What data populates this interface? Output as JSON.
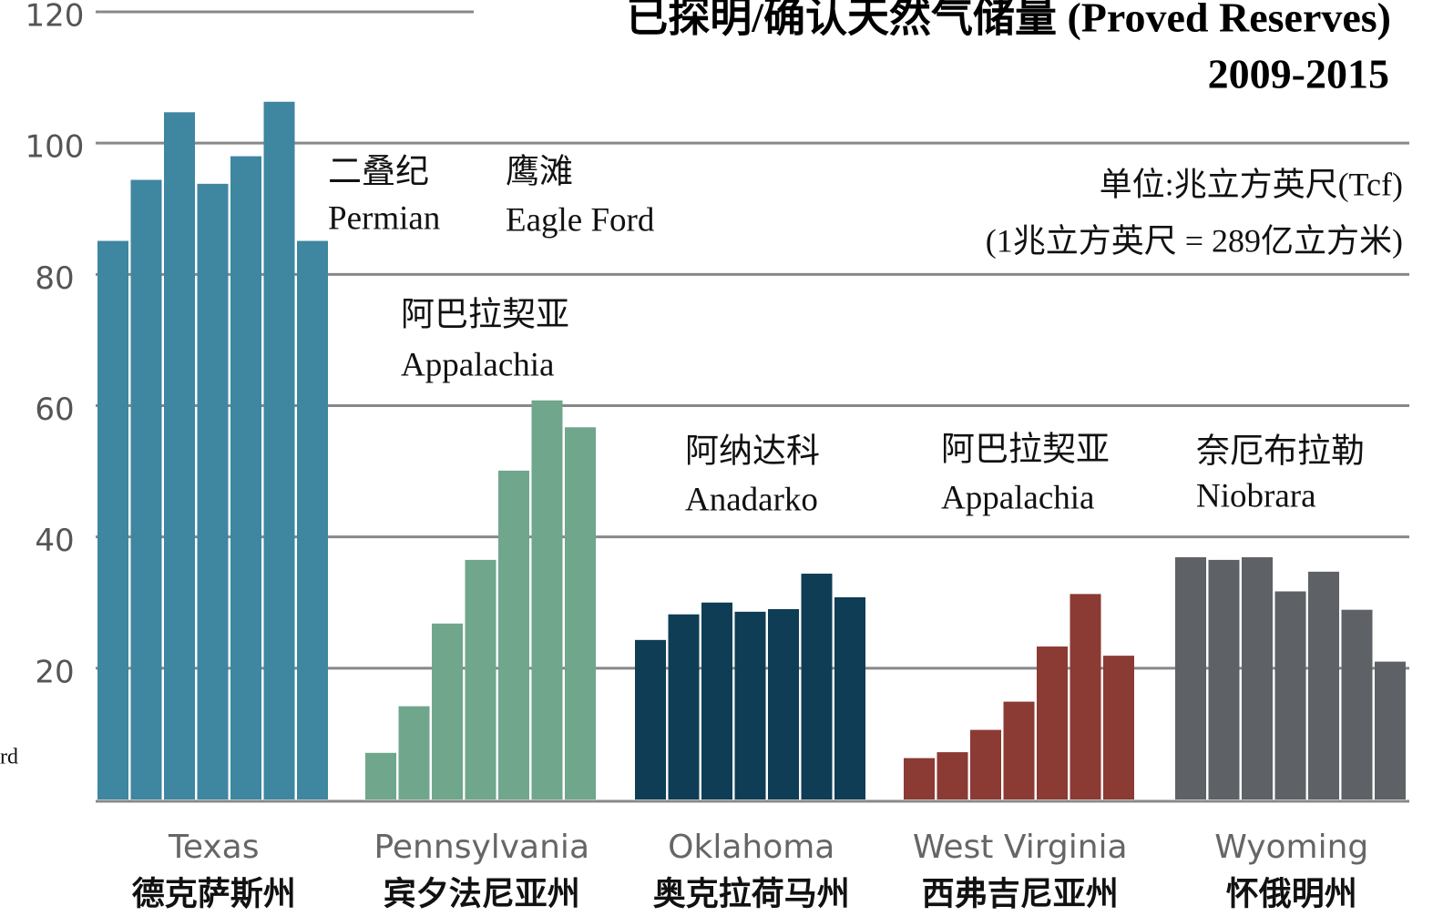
{
  "chart_data": {
    "type": "bar",
    "title": "已探明/确认天然气储量 (Proved Reserves)",
    "subtitle": "2009-2015",
    "unit_note": "单位:兆立方英尺(Tcf)",
    "conversion_note": "(1兆立方英尺 = 289亿立方米)",
    "edge_text": "rd",
    "ylim": [
      0,
      120
    ],
    "yticks": [
      20,
      40,
      60,
      80,
      100,
      120
    ],
    "grid": true,
    "groups": [
      {
        "name": "Texas",
        "name_zh": "德克萨斯州",
        "color": "#3f86a0",
        "values": [
          85.1,
          94.4,
          104.7,
          93.8,
          98,
          106.3,
          85.1
        ]
      },
      {
        "name": "Pennsylvania",
        "name_zh": "宾夕法尼亚州",
        "color": "#6fa68c",
        "values": [
          7.1,
          14.2,
          26.8,
          36.5,
          50.1,
          60.8,
          56.7
        ]
      },
      {
        "name": "Oklahoma",
        "name_zh": "奥克拉荷马州",
        "color": "#0f3d55",
        "values": [
          24.3,
          28.2,
          30,
          28.6,
          29,
          34.4,
          30.8
        ]
      },
      {
        "name": "West Virginia",
        "name_zh": "西弗吉尼亚州",
        "color": "#8b3a34",
        "values": [
          6.3,
          7.2,
          10.6,
          14.9,
          23.3,
          31.3,
          21.9
        ]
      },
      {
        "name": "Wyoming",
        "name_zh": "怀俄明州",
        "color": "#5e6166",
        "values": [
          36.9,
          36.5,
          36.9,
          31.7,
          34.7,
          28.9,
          21
        ]
      }
    ],
    "annotations": [
      {
        "zh": "二叠纪",
        "en": "Permian"
      },
      {
        "zh": "鹰滩",
        "en": "Eagle Ford"
      },
      {
        "zh": "阿巴拉契亚",
        "en": "Appalachia"
      },
      {
        "zh": "阿纳达科",
        "en": "Anadarko"
      },
      {
        "zh": "阿巴拉契亚",
        "en": "Appalachia"
      },
      {
        "zh": "奈厄布拉勒",
        "en": "Niobrara"
      }
    ]
  }
}
